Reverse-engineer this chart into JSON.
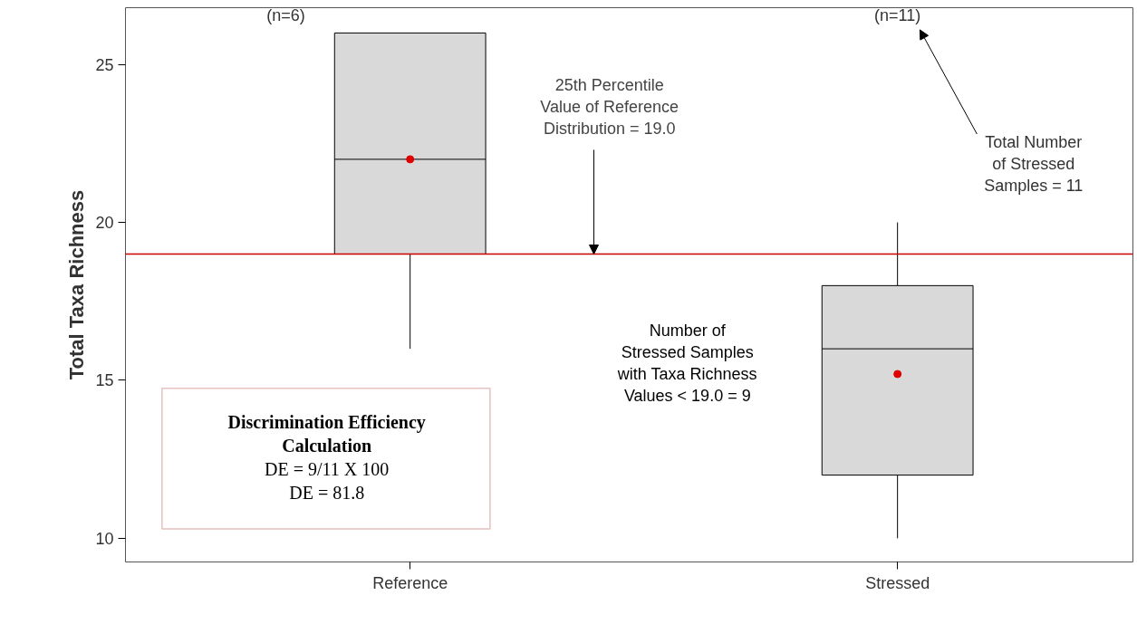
{
  "chart_data": {
    "type": "box",
    "ylabel": "Total Taxa Richness",
    "categories": [
      "Reference",
      "Stressed"
    ],
    "boxes": [
      {
        "low": 16,
        "q1": 19,
        "median": 22,
        "q3": 26,
        "high": 26,
        "mean": 22
      },
      {
        "low": 10,
        "q1": 12,
        "median": 16,
        "q3": 18,
        "high": 20,
        "mean": 15.2
      }
    ],
    "color": "#d9d9d9",
    "ylim": [
      9.25,
      26.8
    ],
    "yticks": [
      10,
      15,
      20,
      25
    ],
    "grid": false,
    "ref_lines": [
      {
        "axis": "y",
        "value": 19,
        "label": "25th Percentile\nValue of Reference\nDistribution = 19.0",
        "color": "#cc0000"
      }
    ],
    "annotations": [
      "(n=6)",
      "(n=11)",
      "Total Number\nof Stressed\nSamples = 11",
      "Number of\nStressed Samples\nwith Taxa Richness\nValues < 19.0 = 9",
      "Discrimination Efficiency\nCalculation\nDE = 9/11 X 100\nDE = 81.8"
    ]
  }
}
